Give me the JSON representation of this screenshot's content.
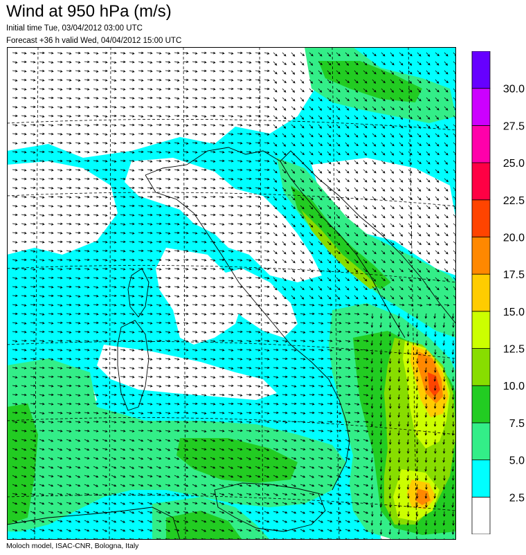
{
  "header": {
    "title": "Wind at 950 hPa (m/s)",
    "initial_time": "Initial time  Tue, 03/04/2012 03:00 UTC",
    "forecast": "Forecast +36 h valid  Wed, 04/04/2012 15:00 UTC"
  },
  "footer": {
    "credit": "Moloch model, ISAC-CNR, Bologna, Italy"
  },
  "legend": {
    "labels": [
      "2.5",
      "5.0",
      "7.5",
      "10.0",
      "12.5",
      "15.0",
      "17.5",
      "20.0",
      "22.5",
      "25.0",
      "27.5",
      "30.0"
    ],
    "colors": [
      "#ffffff",
      "#00ffff",
      "#33ee88",
      "#22cc22",
      "#88dd00",
      "#ccff00",
      "#ffcc00",
      "#ff8800",
      "#ff4400",
      "#ff0044",
      "#ff00aa",
      "#cc00ff",
      "#6600ff"
    ]
  },
  "map": {
    "colors": {
      "calm": "#ffffff",
      "weak": "#00ffff",
      "moderate": "#33ee88",
      "fresh": "#22cc22",
      "strong": "#88dd00",
      "very_strong": "#ccff00",
      "gale": "#ffcc00",
      "severe": "#ff8800",
      "max": "#ff4400"
    }
  }
}
